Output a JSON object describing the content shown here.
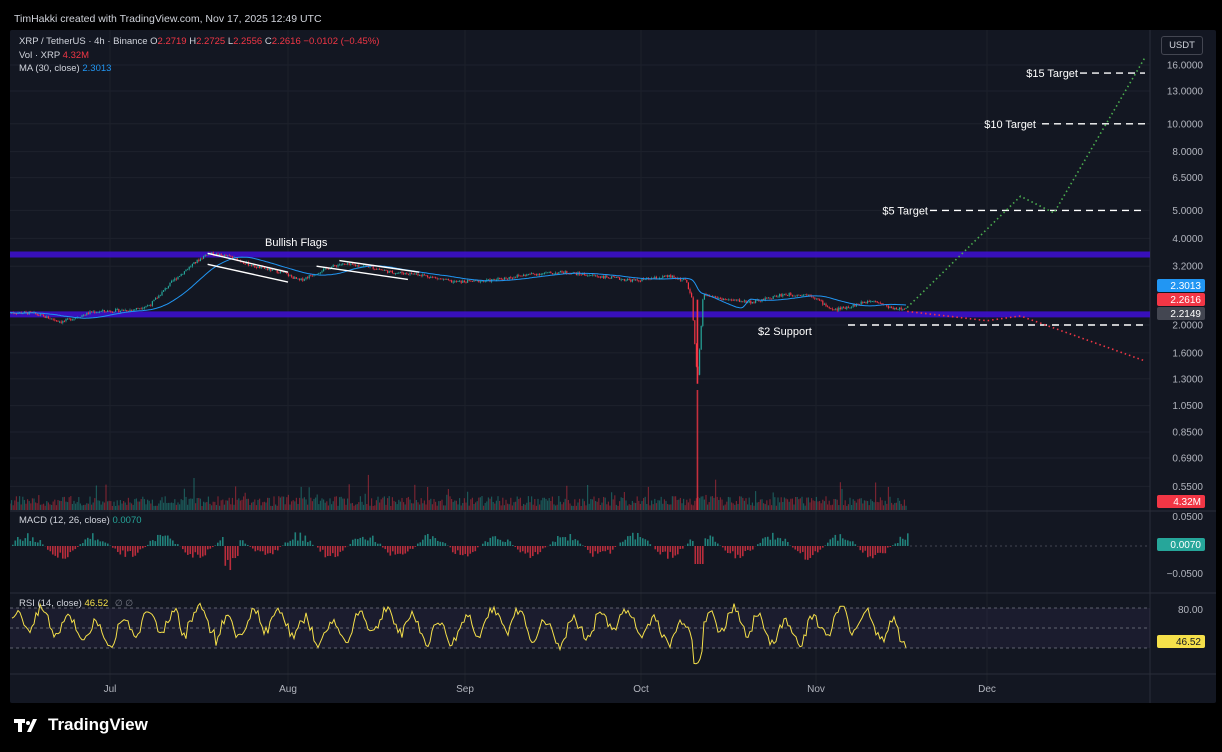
{
  "watermark": "TimHakki created with TradingView.com, Nov 17, 2025 12:49 UTC",
  "currency": "USDT",
  "footer": {
    "brand": "TradingView"
  },
  "legend": {
    "symbol": "XRP / TetherUS · 4h · Binance",
    "o_label": "O",
    "o_value": "2.2719",
    "h_label": "H",
    "h_value": "2.2725",
    "l_label": "L",
    "l_value": "2.2556",
    "c_label": "C",
    "c_value": "2.2616",
    "change": "−0.0102 (−0.45%)",
    "vol_label": "Vol · XRP",
    "vol_value": "4.32M",
    "ma_label": "MA (30, close)",
    "ma_value": "2.3013",
    "macd_label": "MACD (12, 26, close)",
    "macd_value": "0.0070",
    "rsi_label": "RSI (14, close)",
    "rsi_value": "46.52",
    "rsi_extra": "∅ ∅"
  },
  "colors": {
    "background": "#131722",
    "up": "#26a69a",
    "down": "#f23645",
    "ma": "#2196f3",
    "zone": "#3f0fd6",
    "rsi": "#f5e04a",
    "bull_projection": "#4caf50",
    "bear_projection": "#f23645"
  },
  "chart_data": {
    "type": "line",
    "price_axis": {
      "scale": "log",
      "ticks": [
        "16.0000",
        "13.0000",
        "10.0000",
        "8.0000",
        "6.5000",
        "5.0000",
        "4.0000",
        "3.2000",
        "2.0000",
        "1.6000",
        "1.3000",
        "1.0500",
        "0.8500",
        "0.6900",
        "0.5500"
      ],
      "badges": [
        {
          "label": "2.3013",
          "color": "#2196f3"
        },
        {
          "label": "2.2616",
          "color": "#f23645"
        },
        {
          "label": "2.2149",
          "color": "#434651"
        },
        {
          "label": "4.32M",
          "color": "#f23645"
        }
      ]
    },
    "time_axis": {
      "labels": [
        "Jul",
        "Aug",
        "Sep",
        "Oct",
        "Nov",
        "Dec"
      ]
    },
    "price_series": [
      [
        "Jun 10",
        2.22
      ],
      [
        "Jun 18",
        2.2
      ],
      [
        "Jun 23",
        2.05
      ],
      [
        "Jun 28",
        2.22
      ],
      [
        "Jul 05",
        2.26
      ],
      [
        "Jul 08",
        2.35
      ],
      [
        "Jul 12",
        2.85
      ],
      [
        "Jul 15",
        3.2
      ],
      [
        "Jul 18",
        3.55
      ],
      [
        "Jul 22",
        3.45
      ],
      [
        "Jul 26",
        3.2
      ],
      [
        "Jul 31",
        3.05
      ],
      [
        "Aug 03",
        2.85
      ],
      [
        "Aug 07",
        3.1
      ],
      [
        "Aug 10",
        3.25
      ],
      [
        "Aug 15",
        3.2
      ],
      [
        "Aug 19",
        3.05
      ],
      [
        "Aug 24",
        3.0
      ],
      [
        "Aug 30",
        2.82
      ],
      [
        "Sep 05",
        2.85
      ],
      [
        "Sep 12",
        3.0
      ],
      [
        "Sep 18",
        3.05
      ],
      [
        "Sep 24",
        2.95
      ],
      [
        "Sep 30",
        2.85
      ],
      [
        "Oct 06",
        2.95
      ],
      [
        "Oct 09",
        2.85
      ],
      [
        "Oct 10",
        2.45
      ],
      [
        "Oct 11",
        1.25
      ],
      [
        "Oct 12",
        2.55
      ],
      [
        "Oct 16",
        2.45
      ],
      [
        "Oct 21",
        2.4
      ],
      [
        "Oct 26",
        2.55
      ],
      [
        "Oct 31",
        2.55
      ],
      [
        "Nov 04",
        2.25
      ],
      [
        "Nov 08",
        2.35
      ],
      [
        "Nov 11",
        2.45
      ],
      [
        "Nov 14",
        2.3
      ],
      [
        "Nov 17",
        2.26
      ]
    ],
    "annotations": [
      {
        "text": "Bullish Flags"
      },
      {
        "text": "$2 Support",
        "price": 2.0
      },
      {
        "text": "$5 Target",
        "price": 5.0
      },
      {
        "text": "$10 Target",
        "price": 10.0
      },
      {
        "text": "$15 Target",
        "price": 15.0
      }
    ],
    "zones": [
      {
        "name": "resistance",
        "low": 3.45,
        "high": 3.6
      },
      {
        "name": "support",
        "low": 2.13,
        "high": 2.23
      }
    ],
    "projections": [
      {
        "name": "bullish",
        "points": [
          [
            "Nov 17",
            2.3
          ],
          [
            "Dec 07",
            5.6
          ],
          [
            "Dec 13",
            4.9
          ],
          [
            "Dec 31",
            17.0
          ]
        ]
      },
      {
        "name": "bearish",
        "points": [
          [
            "Nov 17",
            2.23
          ],
          [
            "Dec 01",
            2.07
          ],
          [
            "Dec 07",
            2.15
          ],
          [
            "Dec 31",
            1.5
          ]
        ]
      }
    ],
    "macd": {
      "ticks": [
        "0.0500",
        "−0.0500"
      ],
      "value_badge": "0.0070"
    },
    "rsi": {
      "ticks": [
        "80.00"
      ],
      "value_badge": "46.52",
      "upper": 70,
      "lower": 30
    }
  }
}
